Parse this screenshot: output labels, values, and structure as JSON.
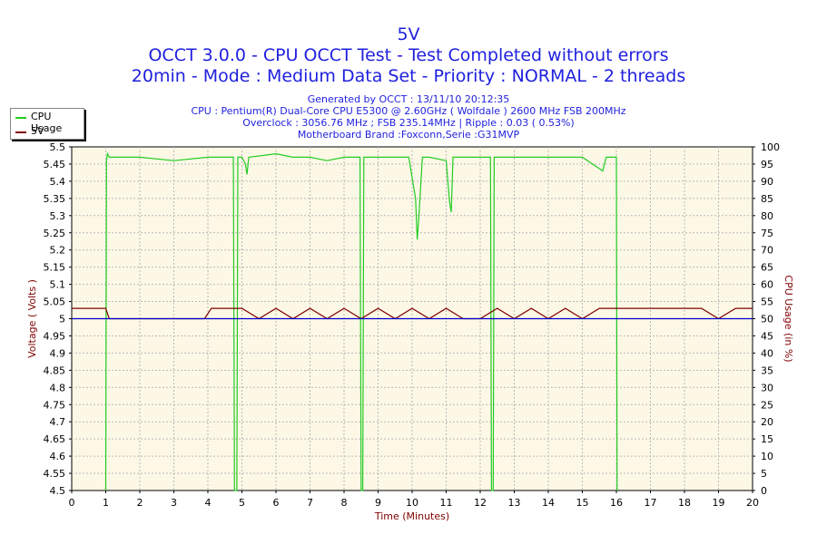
{
  "header": {
    "title": "5V",
    "line1": "OCCT 3.0.0 - CPU OCCT Test - Test Completed without errors",
    "line2": "20min - Mode : Medium Data Set - Priority : NORMAL - 2 threads",
    "info1": "Generated by OCCT : 13/11/10 20:12:35",
    "info2": "CPU : Pentium(R) Dual-Core CPU E5300 @ 2.60GHz ( Wolfdale ) 2600 MHz FSB 200MHz",
    "info3": "Overclock : 3056.76 MHz ; FSB 235.14MHz | Ripple : 0.03 ( 0.53%)",
    "info4": "Motherboard Brand :Foxconn,Serie :G31MVP"
  },
  "legend": {
    "items": [
      {
        "label": "CPU Usage",
        "color": "#22cc22"
      },
      {
        "label": "5V",
        "color": "#800000"
      }
    ]
  },
  "chart_data": {
    "type": "line",
    "xlabel": "Time (Minutes)",
    "ylabel": "Voltage ( Volts )",
    "y2label": "CPU Usage (in %)",
    "xlim": [
      0,
      20
    ],
    "ylim": [
      4.5,
      5.5
    ],
    "y2lim": [
      0,
      100
    ],
    "x_ticks": [
      "0",
      "1",
      "2",
      "3",
      "4",
      "5",
      "6",
      "7",
      "8",
      "9",
      "10",
      "11",
      "12",
      "13",
      "14",
      "15",
      "16",
      "17",
      "18",
      "19",
      "20"
    ],
    "y_ticks": [
      "4.5",
      "4.55",
      "4.6",
      "4.65",
      "4.7",
      "4.75",
      "4.8",
      "4.85",
      "4.9",
      "4.95",
      "5",
      "5.05",
      "5.1",
      "5.15",
      "5.2",
      "5.25",
      "5.3",
      "5.35",
      "5.4",
      "5.45",
      "5.5"
    ],
    "y2_ticks": [
      "0",
      "5",
      "10",
      "15",
      "20",
      "25",
      "30",
      "35",
      "40",
      "45",
      "50",
      "55",
      "60",
      "65",
      "70",
      "75",
      "80",
      "85",
      "90",
      "95",
      "100"
    ],
    "grid": true,
    "reference_line": {
      "value": 5.0,
      "color": "#0000cc"
    },
    "series": [
      {
        "name": "CPU Usage",
        "axis": "right",
        "color": "#22cc22",
        "x": [
          0,
          1.0,
          1.02,
          1.05,
          1.1,
          2,
          3,
          4,
          4.75,
          4.78,
          4.85,
          4.88,
          5,
          5.1,
          5.15,
          5.2,
          6,
          6.5,
          7,
          7.5,
          8,
          8.47,
          8.5,
          8.55,
          8.58,
          9,
          9.5,
          9.9,
          10.0,
          10.1,
          10.15,
          10.2,
          10.3,
          10.5,
          11,
          11.1,
          11.15,
          11.2,
          11.5,
          12,
          12.3,
          12.33,
          12.38,
          12.41,
          12.5,
          13,
          14,
          15,
          15.6,
          15.7,
          16.0,
          16.02
        ],
        "values": [
          null,
          0,
          96,
          98,
          97,
          97,
          96,
          97,
          97,
          0,
          0,
          97,
          97,
          95,
          92,
          97,
          98,
          97,
          97,
          96,
          97,
          97,
          0,
          0,
          97,
          97,
          97,
          97,
          91,
          85,
          73,
          80,
          97,
          97,
          96,
          84,
          81,
          97,
          97,
          97,
          97,
          0,
          0,
          97,
          97,
          97,
          97,
          97,
          93,
          97,
          97,
          0
        ]
      },
      {
        "name": "5V",
        "axis": "left",
        "color": "#800000",
        "x": [
          0,
          1.0,
          1.1,
          2,
          3,
          3.5,
          3.9,
          4.1,
          4.5,
          5,
          5.5,
          6,
          6.5,
          7,
          7.5,
          8,
          8.5,
          9,
          9.5,
          10,
          10.5,
          11,
          11.5,
          12,
          12.5,
          13,
          13.5,
          14,
          14.5,
          15,
          15.5,
          16,
          16.5,
          17,
          17.5,
          18,
          18.5,
          19,
          19.5,
          20
        ],
        "values": [
          5.03,
          5.03,
          5.0,
          5.0,
          5.0,
          5.0,
          5.0,
          5.03,
          5.03,
          5.03,
          5.0,
          5.03,
          5.0,
          5.03,
          5.0,
          5.03,
          5.0,
          5.03,
          5.0,
          5.03,
          5.0,
          5.03,
          5.0,
          5.0,
          5.03,
          5.0,
          5.03,
          5.0,
          5.03,
          5.0,
          5.03,
          5.03,
          5.03,
          5.03,
          5.03,
          5.03,
          5.03,
          5.0,
          5.03,
          5.03
        ]
      }
    ]
  }
}
